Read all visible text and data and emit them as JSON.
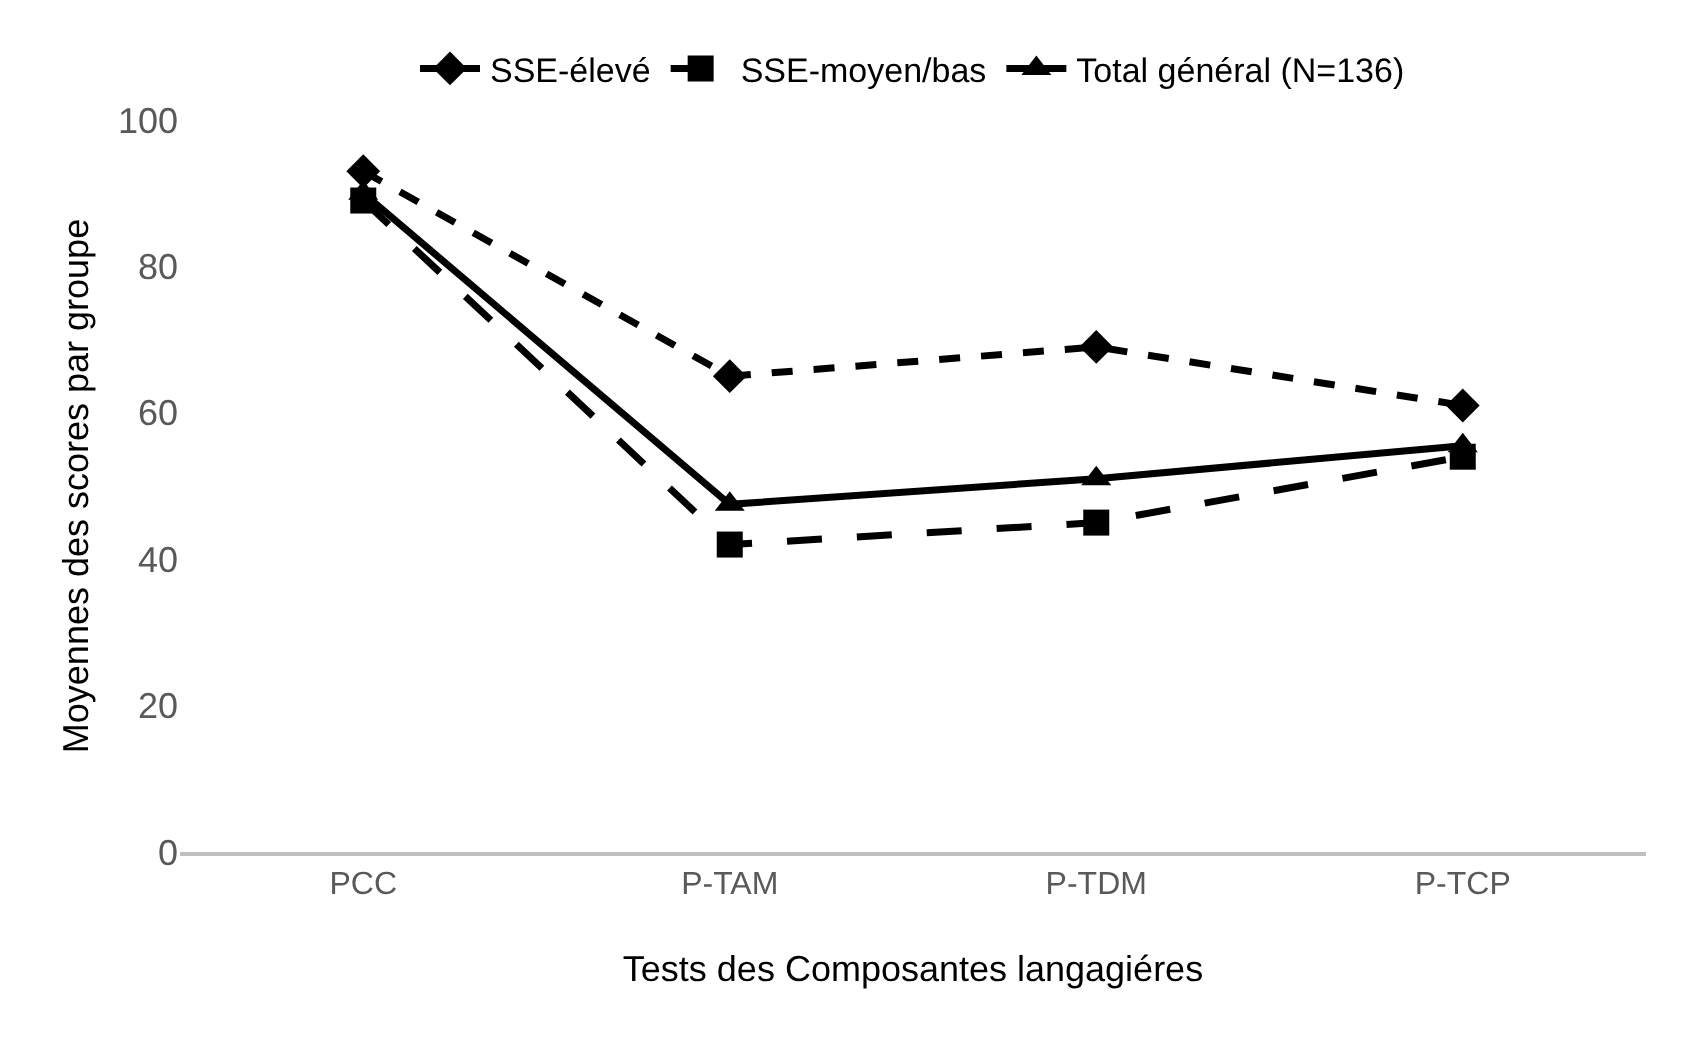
{
  "chart_data": {
    "type": "line",
    "xlabel": "Tests des Composantes langagiéres",
    "ylabel": "Moyennes des scores par groupe",
    "categories": [
      "PCC",
      "P-TAM",
      "P-TDM",
      "P-TCP"
    ],
    "series": [
      {
        "name": "SSE-élevé",
        "color": "#000000",
        "values": [
          93,
          65,
          69,
          61
        ],
        "marker": "diamond",
        "line_style": "dotted"
      },
      {
        "name": "SSE-moyen/bas",
        "color": "#000000",
        "values": [
          89,
          42,
          45,
          54
        ],
        "marker": "square",
        "line_style": "dashed"
      },
      {
        "name": "Total général (N=136)",
        "color": "#000000",
        "values": [
          90,
          47.5,
          51,
          55.5
        ],
        "marker": "triangle",
        "line_style": "solid"
      }
    ],
    "ylim": [
      0,
      100
    ],
    "yticks": [
      0,
      20,
      40,
      60,
      80,
      100
    ],
    "grid": false,
    "legend": "top"
  }
}
